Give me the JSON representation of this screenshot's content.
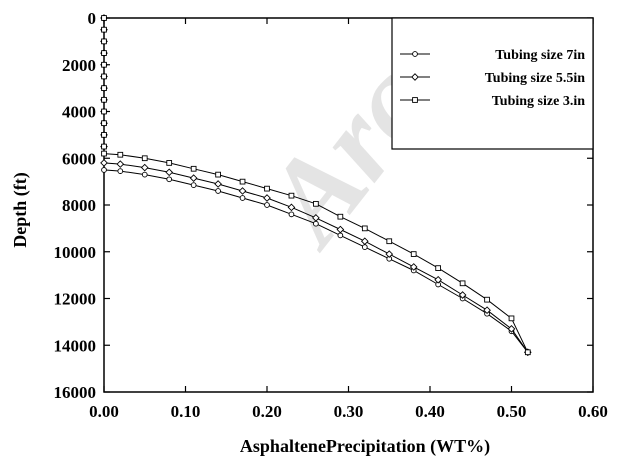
{
  "chart_data": {
    "type": "line",
    "title": "",
    "xlabel": "AsphaltenePrecipitation (WT%)",
    "ylabel": "Depth (ft)",
    "xlim": [
      0.0,
      0.6
    ],
    "ylim": [
      16000,
      0
    ],
    "y_inverted": true,
    "xticks": [
      "0.00",
      "0.10",
      "0.20",
      "0.30",
      "0.40",
      "0.50",
      "0.60"
    ],
    "yticks": [
      "0",
      "2000",
      "4000",
      "6000",
      "8000",
      "10000",
      "12000",
      "14000",
      "16000"
    ],
    "grid": false,
    "legend_position": "top-right",
    "watermark": "Arc",
    "series": [
      {
        "name": "Tubing size 7in",
        "marker": "circle",
        "x": [
          0.0,
          0.0,
          0.0,
          0.0,
          0.0,
          0.0,
          0.0,
          0.0,
          0.0,
          0.0,
          0.0,
          0.0,
          0.0,
          0.02,
          0.05,
          0.08,
          0.11,
          0.14,
          0.17,
          0.2,
          0.23,
          0.26,
          0.29,
          0.32,
          0.35,
          0.38,
          0.41,
          0.44,
          0.47,
          0.5,
          0.52
        ],
        "y": [
          0,
          500,
          1000,
          1500,
          2000,
          2500,
          3000,
          3500,
          4000,
          4500,
          5000,
          5500,
          6500,
          6550,
          6700,
          6900,
          7150,
          7400,
          7700,
          8000,
          8400,
          8800,
          9300,
          9800,
          10300,
          10800,
          11400,
          12000,
          12650,
          13400,
          14300
        ]
      },
      {
        "name": "Tubing size 5.5in",
        "marker": "diamond",
        "x": [
          0.0,
          0.0,
          0.0,
          0.0,
          0.0,
          0.0,
          0.0,
          0.0,
          0.0,
          0.0,
          0.0,
          0.0,
          0.0,
          0.02,
          0.05,
          0.08,
          0.11,
          0.14,
          0.17,
          0.2,
          0.23,
          0.26,
          0.29,
          0.32,
          0.35,
          0.38,
          0.41,
          0.44,
          0.47,
          0.5,
          0.52
        ],
        "y": [
          0,
          500,
          1000,
          1500,
          2000,
          2500,
          3000,
          3500,
          4000,
          4500,
          5000,
          5500,
          6200,
          6250,
          6400,
          6600,
          6850,
          7100,
          7400,
          7700,
          8100,
          8550,
          9050,
          9550,
          10100,
          10650,
          11200,
          11850,
          12500,
          13300,
          14300
        ]
      },
      {
        "name": "Tubing size 3.in",
        "marker": "square",
        "x": [
          0.0,
          0.0,
          0.0,
          0.0,
          0.0,
          0.0,
          0.0,
          0.0,
          0.0,
          0.0,
          0.0,
          0.0,
          0.0,
          0.02,
          0.05,
          0.08,
          0.11,
          0.14,
          0.17,
          0.2,
          0.23,
          0.26,
          0.29,
          0.32,
          0.35,
          0.38,
          0.41,
          0.44,
          0.47,
          0.5,
          0.52
        ],
        "y": [
          0,
          500,
          1000,
          1500,
          2000,
          2500,
          3000,
          3500,
          4000,
          4500,
          5000,
          5500,
          5800,
          5850,
          6000,
          6200,
          6450,
          6700,
          7000,
          7300,
          7600,
          7950,
          8500,
          9000,
          9550,
          10100,
          10700,
          11350,
          12050,
          12850,
          14300
        ]
      }
    ]
  }
}
